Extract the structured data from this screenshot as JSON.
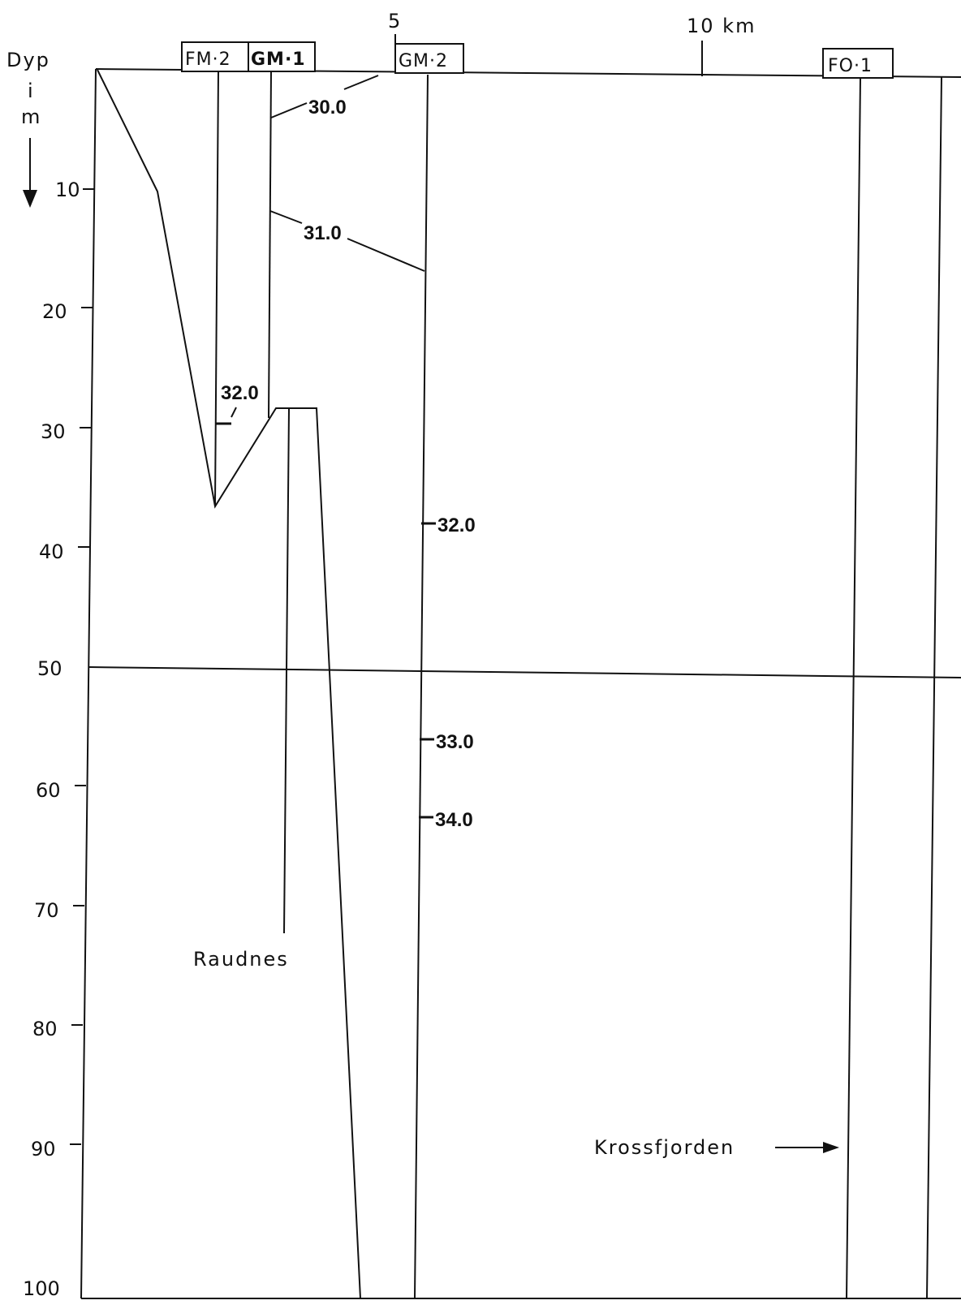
{
  "axis": {
    "title_line1": "Dyp",
    "title_line2": "i",
    "title_line3": "m",
    "depth_ticks": [
      "10",
      "20",
      "30",
      "40",
      "50",
      "60",
      "70",
      "80",
      "90",
      "100"
    ],
    "distance_ticks": [
      "5",
      "10  km"
    ]
  },
  "stations": [
    {
      "label": "FM·2",
      "bold": false
    },
    {
      "label": "GM·1",
      "bold": true
    },
    {
      "label": "GM·2",
      "bold": false
    },
    {
      "label": "FO·1",
      "bold": false
    }
  ],
  "isolines": {
    "upper_30": "30.0",
    "upper_31": "31.0",
    "fm2_32": "32.0",
    "gm2_32": "32.0",
    "gm2_33": "33.0",
    "gm2_34": "34.0"
  },
  "places": {
    "raudnes": "Raudnes",
    "krossfjorden": "Krossfjorden"
  }
}
